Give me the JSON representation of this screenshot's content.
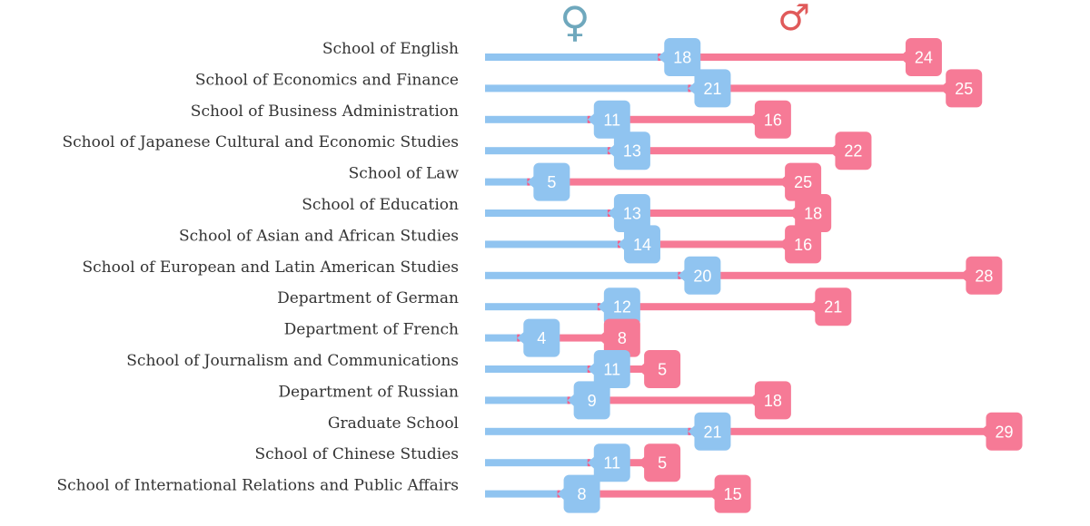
{
  "legend": {
    "female": {
      "symbol": "♀",
      "color": "#6fa8bd"
    },
    "male": {
      "symbol": "♂",
      "color": "#e05a5a"
    }
  },
  "colors": {
    "female": "#90c4f0",
    "male": "#f67a96",
    "tip": "#f2608a"
  },
  "chart_data": {
    "type": "bar",
    "stacked": true,
    "orientation": "horizontal",
    "categories": [
      "School of English",
      "School of Economics and Finance",
      "School of Business Administration",
      "School of Japanese Cultural and Economic Studies",
      "School of Law",
      "School of Education",
      "School of Asian and African Studies",
      "School of European and Latin American Studies",
      "Department of German",
      "Department of French",
      "School of Journalism and Communications",
      "Department of Russian",
      "Graduate School",
      "School of Chinese Studies",
      "School of International Relations and Public Affairs"
    ],
    "series": [
      {
        "name": "♀",
        "values": [
          18,
          21,
          11,
          13,
          5,
          13,
          14,
          20,
          12,
          4,
          11,
          9,
          21,
          11,
          8
        ]
      },
      {
        "name": "♂",
        "values": [
          24,
          25,
          16,
          22,
          25,
          18,
          16,
          28,
          21,
          8,
          5,
          18,
          29,
          5,
          15
        ]
      }
    ],
    "xlim": [
      0,
      50
    ],
    "grid": false,
    "legend_position": "top"
  }
}
